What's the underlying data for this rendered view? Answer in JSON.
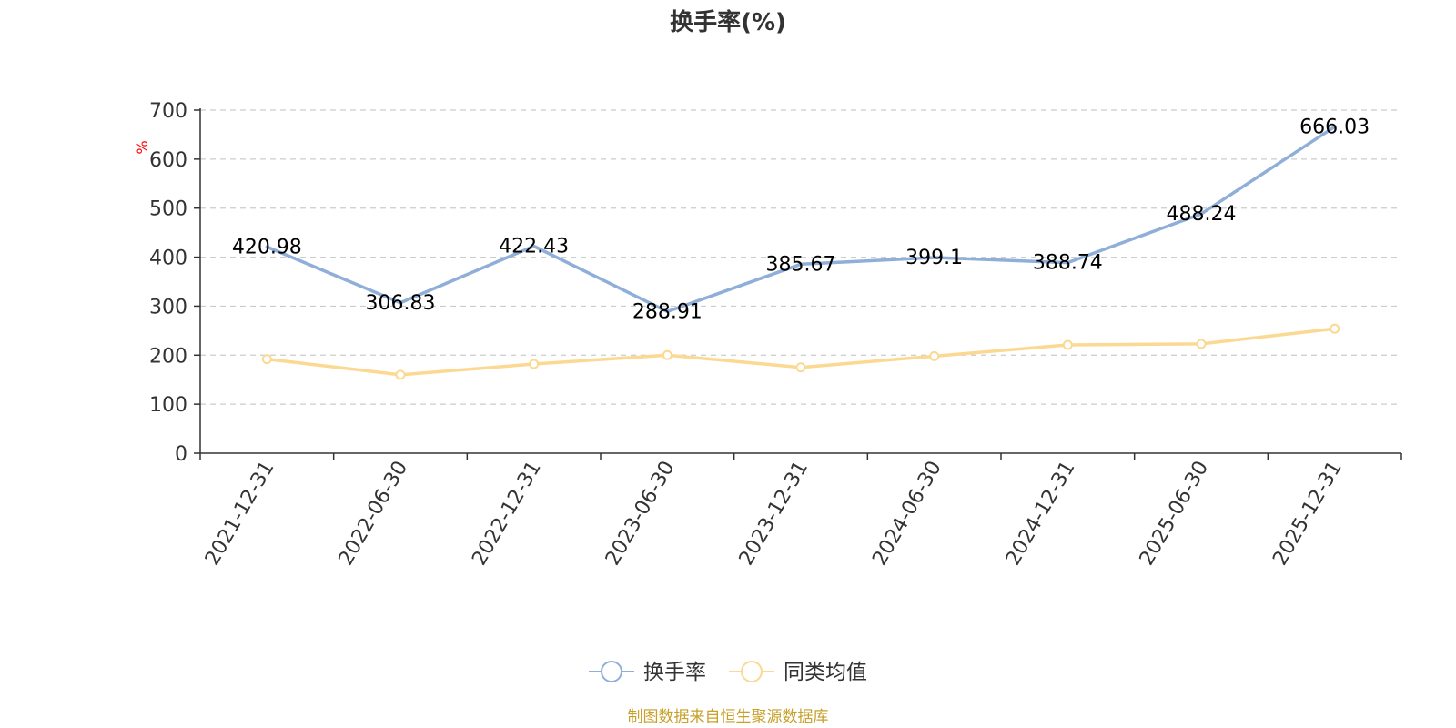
{
  "colors": {
    "series_1": "#8fafd8",
    "series_2": "#fbd993",
    "axis": "#333333",
    "grid": "#cccccc",
    "unit": "#ff0000",
    "source": "#c8a02a"
  },
  "chart_data": {
    "type": "line",
    "title": "换手率(%)",
    "unit_label": "%",
    "categories": [
      "2021-12-31",
      "2022-06-30",
      "2022-12-31",
      "2023-06-30",
      "2023-12-31",
      "2024-06-30",
      "2024-12-31",
      "2025-06-30",
      "2025-12-31"
    ],
    "series": [
      {
        "name": "换手率",
        "values": [
          420.98,
          306.83,
          422.43,
          288.91,
          385.67,
          399.1,
          388.74,
          488.24,
          666.03
        ],
        "labels": [
          "420.98",
          "306.83",
          "422.43",
          "288.91",
          "385.67",
          "399.1",
          "388.74",
          "488.24",
          "666.03"
        ]
      },
      {
        "name": "同类均值",
        "values": [
          192,
          160,
          182,
          200,
          175,
          198,
          221,
          223,
          254
        ]
      }
    ],
    "y_ticks": [
      "0",
      "100",
      "200",
      "300",
      "400",
      "500",
      "600",
      "700"
    ],
    "ylim": [
      0,
      700
    ],
    "grid": true,
    "legend_position": "bottom-center"
  },
  "footer": {
    "source": "制图数据来自恒生聚源数据库"
  }
}
